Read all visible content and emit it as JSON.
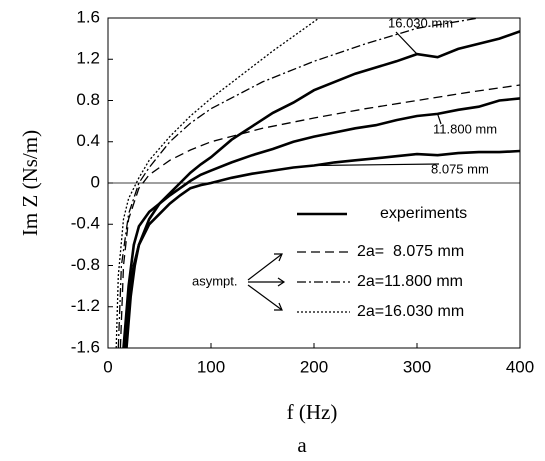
{
  "chart_data": {
    "type": "line",
    "xlabel": "f  (Hz)",
    "ylabel": "Im Z  (Ns/m)",
    "caption": "a",
    "xlim": [
      0,
      400
    ],
    "ylim": [
      -1.6,
      1.6
    ],
    "xticks": [
      0,
      100,
      200,
      300,
      400
    ],
    "yticks": [
      -1.6,
      -1.2,
      -0.8,
      -0.4,
      0,
      0.4,
      0.8,
      1.2,
      1.6
    ],
    "zero_line": true,
    "experiments_label": "experiments",
    "asymptote_note": "asympt.",
    "series": [
      {
        "label": "16.030 mm",
        "color": "#000000",
        "dash": "solid",
        "x": [
          15,
          20,
          25,
          30,
          40,
          50,
          60,
          70,
          80,
          90,
          100,
          120,
          140,
          160,
          180,
          200,
          220,
          240,
          260,
          280,
          300,
          320,
          340,
          360,
          380,
          400
        ],
        "values": [
          -1.6,
          -1.0,
          -0.6,
          -0.42,
          -0.28,
          -0.2,
          -0.1,
          0.0,
          0.1,
          0.18,
          0.25,
          0.42,
          0.55,
          0.68,
          0.78,
          0.9,
          0.98,
          1.06,
          1.12,
          1.18,
          1.25,
          1.22,
          1.3,
          1.35,
          1.4,
          1.47
        ]
      },
      {
        "label": "11.800 mm",
        "color": "#000000",
        "dash": "solid",
        "x": [
          16,
          20,
          25,
          30,
          40,
          50,
          60,
          70,
          80,
          90,
          100,
          120,
          140,
          160,
          180,
          200,
          220,
          240,
          260,
          280,
          300,
          320,
          340,
          360,
          380,
          400
        ],
        "values": [
          -1.6,
          -1.1,
          -0.8,
          -0.6,
          -0.35,
          -0.2,
          -0.12,
          -0.05,
          0.02,
          0.08,
          0.12,
          0.2,
          0.27,
          0.33,
          0.4,
          0.45,
          0.49,
          0.53,
          0.56,
          0.61,
          0.65,
          0.67,
          0.71,
          0.74,
          0.8,
          0.82
        ]
      },
      {
        "label": "8.075 mm",
        "color": "#000000",
        "dash": "solid",
        "x": [
          18,
          22,
          26,
          30,
          40,
          50,
          60,
          70,
          80,
          90,
          100,
          120,
          140,
          160,
          180,
          200,
          220,
          240,
          260,
          280,
          300,
          320,
          340,
          360,
          380,
          400
        ],
        "values": [
          -1.6,
          -1.1,
          -0.8,
          -0.6,
          -0.4,
          -0.3,
          -0.2,
          -0.12,
          -0.05,
          -0.02,
          0.0,
          0.05,
          0.09,
          0.12,
          0.15,
          0.17,
          0.2,
          0.22,
          0.24,
          0.26,
          0.28,
          0.27,
          0.29,
          0.3,
          0.3,
          0.31
        ]
      },
      {
        "name": "2a=  8.075 mm",
        "color": "#000000",
        "dash": "9,5",
        "x": [
          12,
          15,
          20,
          30,
          40,
          60,
          80,
          100,
          150,
          200,
          250,
          300,
          350,
          400
        ],
        "values": [
          -1.6,
          -0.8,
          -0.35,
          -0.05,
          0.08,
          0.22,
          0.32,
          0.4,
          0.53,
          0.63,
          0.72,
          0.8,
          0.88,
          0.95
        ]
      },
      {
        "name": "2a=11.800 mm",
        "color": "#000000",
        "dash": "9,3,2,3",
        "x": [
          10,
          13,
          20,
          30,
          40,
          60,
          80,
          100,
          150,
          200,
          250,
          300,
          360
        ],
        "values": [
          -1.6,
          -0.8,
          -0.3,
          0,
          0.15,
          0.4,
          0.58,
          0.72,
          0.98,
          1.18,
          1.35,
          1.5,
          1.6
        ]
      },
      {
        "name": "2a=16.030 mm",
        "color": "#000000",
        "dash": "2,2",
        "x": [
          8,
          10,
          15,
          20,
          30,
          40,
          60,
          80,
          100,
          130,
          160,
          205
        ],
        "values": [
          -1.6,
          -0.9,
          -0.35,
          -0.15,
          0.05,
          0.22,
          0.45,
          0.65,
          0.82,
          1.05,
          1.28,
          1.6
        ]
      }
    ]
  }
}
